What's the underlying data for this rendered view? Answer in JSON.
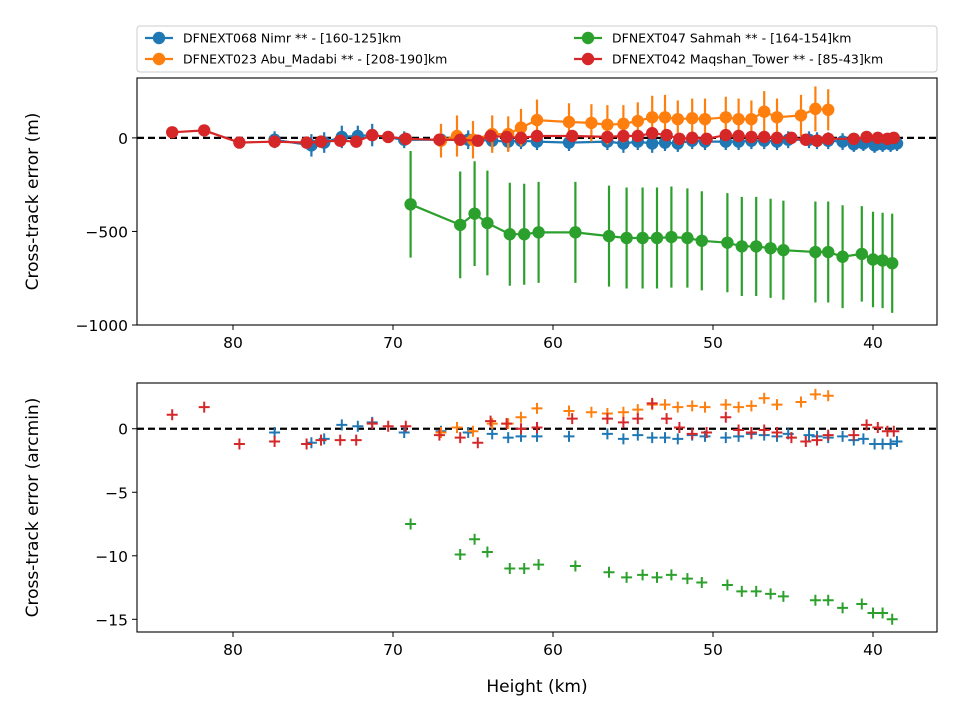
{
  "chart_data": [
    {
      "type": "line",
      "ylabel": "Cross-track error (m)",
      "xlabel": "",
      "xlim": [
        86,
        36
      ],
      "ylim": [
        -1000,
        320
      ],
      "xticks": [
        80,
        70,
        60,
        50,
        40
      ],
      "yticks": [
        0,
        -500,
        -1000
      ],
      "xtick_labels": [
        "80",
        "70",
        "60",
        "50",
        "40"
      ],
      "ytick_labels": [
        "0",
        "−500",
        "−1000"
      ],
      "reference_line": 0,
      "legend": {
        "placement": "above",
        "columns": 2
      },
      "series": [
        {
          "name": "DFNEXT068 Nimr **  - [160-125]km",
          "color": "#1f77b4",
          "x": [
            77.4,
            75.1,
            74.3,
            73.2,
            72.2,
            71.3,
            69.3,
            67.0,
            65.3,
            63.8,
            62.8,
            62.0,
            61.0,
            59.0,
            56.6,
            55.6,
            54.7,
            53.8,
            53.0,
            52.2,
            51.3,
            50.5,
            49.2,
            48.4,
            47.6,
            46.8,
            46.0,
            45.3,
            44.0,
            43.5,
            42.8,
            41.9,
            41.2,
            40.6,
            39.9,
            39.4,
            38.9,
            38.5
          ],
          "y": [
            -10,
            -40,
            -25,
            5,
            10,
            15,
            -10,
            -10,
            -10,
            -15,
            -20,
            -15,
            -20,
            -25,
            -20,
            -30,
            -20,
            -30,
            -25,
            -30,
            -15,
            -20,
            -20,
            -20,
            -15,
            -15,
            -20,
            -10,
            -10,
            -15,
            -15,
            -20,
            -35,
            -30,
            -40,
            -35,
            -35,
            -30
          ],
          "err": [
            45,
            60,
            55,
            60,
            55,
            60,
            45,
            55,
            50,
            45,
            50,
            45,
            45,
            45,
            45,
            50,
            45,
            50,
            45,
            45,
            45,
            45,
            45,
            45,
            45,
            45,
            45,
            45,
            45,
            45,
            45,
            45,
            40,
            40,
            40,
            40,
            40,
            40
          ]
        },
        {
          "name": "DFNEXT023 Abu_Madabi **  - [208-190]km",
          "color": "#ff7f0e",
          "x": [
            67.0,
            66.0,
            65.0,
            63.8,
            62.8,
            62.0,
            61.0,
            59.0,
            57.6,
            56.6,
            55.6,
            54.7,
            53.8,
            53.0,
            52.2,
            51.3,
            50.5,
            49.2,
            48.4,
            47.6,
            46.8,
            46.0,
            44.5,
            43.6,
            42.8
          ],
          "y": [
            -15,
            10,
            -10,
            20,
            20,
            55,
            95,
            85,
            80,
            70,
            75,
            90,
            110,
            110,
            100,
            105,
            100,
            110,
            100,
            100,
            140,
            110,
            120,
            155,
            150
          ],
          "err": [
            90,
            110,
            100,
            100,
            95,
            100,
            110,
            100,
            100,
            105,
            100,
            100,
            115,
            120,
            100,
            105,
            110,
            110,
            110,
            100,
            110,
            100,
            110,
            120,
            110
          ]
        },
        {
          "name": "DFNEXT047 Sahmah **  - [164-154]km",
          "color": "#2ca02c",
          "x": [
            68.9,
            65.8,
            64.9,
            64.1,
            62.7,
            61.8,
            60.9,
            58.6,
            56.5,
            55.4,
            54.4,
            53.5,
            52.6,
            51.6,
            50.7,
            49.1,
            48.2,
            47.3,
            46.4,
            45.6,
            43.6,
            42.8,
            41.9,
            40.7,
            40.0,
            39.4,
            38.8
          ],
          "y": [
            -355,
            -465,
            -405,
            -455,
            -515,
            -515,
            -505,
            -505,
            -525,
            -535,
            -535,
            -535,
            -530,
            -535,
            -550,
            -560,
            -580,
            -580,
            -590,
            -600,
            -610,
            -610,
            -635,
            -620,
            -650,
            -655,
            -670
          ],
          "err": [
            285,
            285,
            280,
            280,
            275,
            270,
            270,
            270,
            270,
            270,
            270,
            270,
            270,
            265,
            265,
            265,
            265,
            265,
            265,
            265,
            270,
            270,
            275,
            255,
            255,
            255,
            265
          ]
        },
        {
          "name": "DFNEXT042 Maqshan_Tower **  - [85-43]km",
          "color": "#d62728",
          "x": [
            83.8,
            81.8,
            79.6,
            77.4,
            75.4,
            74.5,
            73.3,
            72.3,
            71.3,
            70.3,
            69.2,
            67.1,
            65.8,
            64.7,
            63.9,
            62.9,
            62.0,
            61.0,
            58.8,
            56.6,
            55.6,
            54.7,
            53.8,
            52.9,
            52.1,
            51.3,
            50.4,
            49.2,
            48.4,
            47.6,
            46.8,
            46.0,
            45.1,
            44.2,
            43.5,
            42.8,
            41.2,
            40.4,
            39.7,
            39.1,
            38.7
          ],
          "y": [
            30,
            40,
            -25,
            -20,
            -25,
            -20,
            -15,
            -20,
            15,
            5,
            -5,
            -10,
            -10,
            -15,
            10,
            5,
            0,
            10,
            10,
            5,
            10,
            10,
            25,
            15,
            -5,
            0,
            -5,
            15,
            10,
            5,
            5,
            0,
            0,
            -10,
            -15,
            -5,
            -5,
            5,
            0,
            -5,
            0
          ]
        }
      ]
    },
    {
      "type": "scatter",
      "xlabel": "Height (km)",
      "ylabel": "Cross-track error (arcmin)",
      "xlim": [
        86,
        36
      ],
      "ylim": [
        -16,
        3.6
      ],
      "xticks": [
        80,
        70,
        60,
        50,
        40
      ],
      "yticks": [
        0,
        -5,
        -10,
        -15
      ],
      "xtick_labels": [
        "80",
        "70",
        "60",
        "50",
        "40"
      ],
      "ytick_labels": [
        "0",
        "−5",
        "−10",
        "−15"
      ],
      "reference_line": 0,
      "series": [
        {
          "color": "#1f77b4",
          "x": [
            77.4,
            75.1,
            74.3,
            73.2,
            72.2,
            71.3,
            69.3,
            67.0,
            65.3,
            63.8,
            62.8,
            62.0,
            61.0,
            59.0,
            56.6,
            55.6,
            54.7,
            53.8,
            53.0,
            52.2,
            51.3,
            50.5,
            49.2,
            48.4,
            47.6,
            46.8,
            46.0,
            45.3,
            44.0,
            43.5,
            42.8,
            41.9,
            41.2,
            40.6,
            39.9,
            39.4,
            38.9,
            38.5
          ],
          "y": [
            -0.3,
            -1.1,
            -0.8,
            0.3,
            0.2,
            0.5,
            -0.3,
            -0.2,
            -0.3,
            -0.4,
            -0.7,
            -0.6,
            -0.6,
            -0.6,
            -0.4,
            -0.8,
            -0.5,
            -0.7,
            -0.7,
            -0.8,
            -0.5,
            -0.6,
            -0.7,
            -0.6,
            -0.4,
            -0.5,
            -0.6,
            -0.4,
            -0.5,
            -0.6,
            -0.7,
            -0.6,
            -0.9,
            -0.8,
            -1.2,
            -1.2,
            -1.2,
            -1.0
          ]
        },
        {
          "color": "#ff7f0e",
          "x": [
            67.0,
            66.0,
            65.0,
            63.8,
            62.8,
            62.0,
            61.0,
            59.0,
            57.6,
            56.6,
            55.6,
            54.7,
            53.8,
            53.0,
            52.2,
            51.3,
            50.5,
            49.2,
            48.4,
            47.6,
            46.8,
            46.0,
            44.5,
            43.6,
            42.8
          ],
          "y": [
            -0.3,
            0.1,
            -0.2,
            0.4,
            0.4,
            0.9,
            1.6,
            1.4,
            1.3,
            1.2,
            1.3,
            1.5,
            1.9,
            1.9,
            1.7,
            1.8,
            1.7,
            1.9,
            1.7,
            1.8,
            2.4,
            1.9,
            2.1,
            2.7,
            2.6
          ]
        },
        {
          "color": "#2ca02c",
          "x": [
            68.9,
            65.8,
            64.9,
            64.1,
            62.7,
            61.8,
            60.9,
            58.6,
            56.5,
            55.4,
            54.4,
            53.5,
            52.6,
            51.6,
            50.7,
            49.1,
            48.2,
            47.3,
            46.4,
            45.6,
            43.6,
            42.8,
            41.9,
            40.7,
            40.0,
            39.4,
            38.8
          ],
          "y": [
            -7.5,
            -9.9,
            -8.7,
            -9.7,
            -11.0,
            -11.0,
            -10.7,
            -10.8,
            -11.3,
            -11.7,
            -11.5,
            -11.7,
            -11.5,
            -11.8,
            -12.1,
            -12.3,
            -12.8,
            -12.8,
            -13.0,
            -13.2,
            -13.5,
            -13.5,
            -14.1,
            -13.8,
            -14.5,
            -14.5,
            -15.0
          ]
        },
        {
          "color": "#d62728",
          "x": [
            83.8,
            81.8,
            79.6,
            77.4,
            75.4,
            74.5,
            73.3,
            72.3,
            71.3,
            70.3,
            69.2,
            67.1,
            65.8,
            64.7,
            63.9,
            62.9,
            62.0,
            61.0,
            58.8,
            56.6,
            55.6,
            54.7,
            53.8,
            52.9,
            52.1,
            51.3,
            50.4,
            49.2,
            48.4,
            47.6,
            46.8,
            46.0,
            45.1,
            44.2,
            43.5,
            42.8,
            41.2,
            40.4,
            39.7,
            39.1,
            38.7
          ],
          "y": [
            1.1,
            1.7,
            -1.2,
            -1.0,
            -1.2,
            -0.9,
            -0.9,
            -0.9,
            0.4,
            0.2,
            0.2,
            -0.5,
            -0.7,
            -1.1,
            0.6,
            0.4,
            0.0,
            0.1,
            0.8,
            0.8,
            0.5,
            0.8,
            2.0,
            0.8,
            0.1,
            -0.4,
            -0.3,
            0.9,
            -0.1,
            -0.3,
            -0.1,
            -0.3,
            -0.7,
            -1.0,
            -0.9,
            -0.5,
            -0.5,
            0.3,
            0.1,
            -0.2,
            -0.2
          ]
        }
      ]
    }
  ]
}
